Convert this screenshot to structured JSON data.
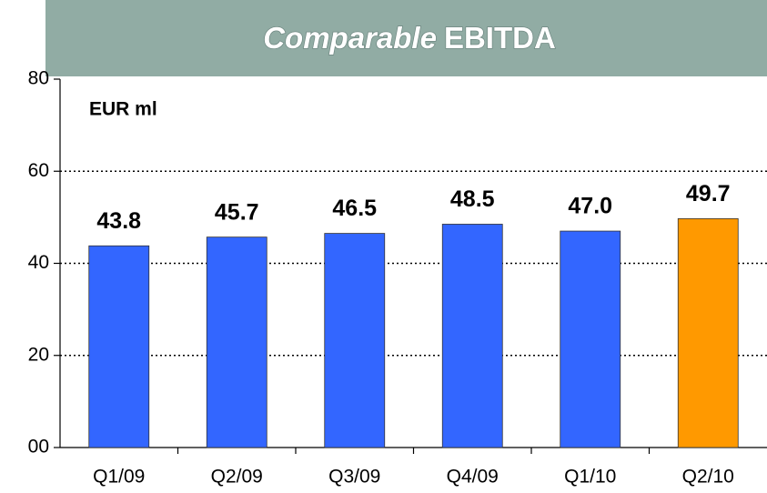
{
  "chart_data": {
    "type": "bar",
    "title_parts": [
      "Comparable",
      "EBITDA"
    ],
    "y_label": "EUR ml",
    "categories": [
      "Q1/09",
      "Q2/09",
      "Q3/09",
      "Q4/09",
      "Q1/10",
      "Q2/10"
    ],
    "values": [
      43.8,
      45.7,
      46.5,
      48.5,
      47.0,
      49.7
    ],
    "value_labels": [
      "43.8",
      "45.7",
      "46.5",
      "48.5",
      "47.0",
      "49.7"
    ],
    "colors": [
      "#3366ff",
      "#3366ff",
      "#3366ff",
      "#3366ff",
      "#3366ff",
      "#ff9900"
    ],
    "ylim": [
      0,
      80
    ],
    "yticks": [
      {
        "value": 0,
        "label": "00"
      },
      20,
      40,
      60,
      80
    ],
    "grid": true
  }
}
